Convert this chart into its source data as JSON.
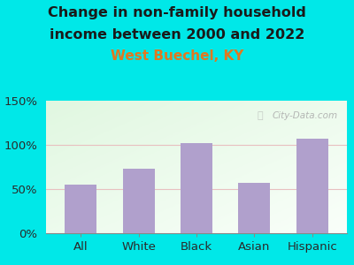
{
  "categories": [
    "All",
    "White",
    "Black",
    "Asian",
    "Hispanic"
  ],
  "values": [
    55,
    73,
    102,
    57,
    107
  ],
  "bar_color": "#b0a0cc",
  "title_line1": "Change in non-family household",
  "title_line2": "income between 2000 and 2022",
  "subtitle": "West Buechel, KY",
  "title_fontsize": 11.5,
  "subtitle_fontsize": 11,
  "title_color": "#1a1a1a",
  "subtitle_color": "#e07820",
  "outer_bg": "#00e8e8",
  "ylim": [
    0,
    150
  ],
  "yticks": [
    0,
    50,
    100,
    150
  ],
  "ytick_labels": [
    "0%",
    "50%",
    "100%",
    "150%"
  ],
  "grid_color": "#e8c0c0",
  "watermark": "City-Data.com",
  "watermark_color": "#aaaaaa"
}
